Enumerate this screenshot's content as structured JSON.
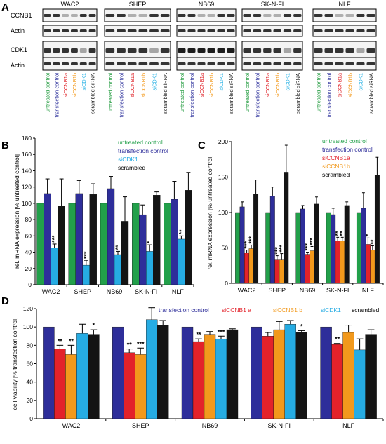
{
  "panels": {
    "A": "A",
    "B": "B",
    "C": "C",
    "D": "D"
  },
  "panel_a": {
    "cell_lines": [
      "WAC2",
      "SHEP",
      "NB69",
      "SK-N-FI",
      "NLF"
    ],
    "row_labels": [
      "CCNB1",
      "Actin",
      "CDK1",
      "Actin"
    ],
    "lane_labels": [
      {
        "text": "untreated control",
        "color": "#1f9a3c"
      },
      {
        "text": "transfection control",
        "color": "#2b2f9b"
      },
      {
        "text": "siCCNB1a",
        "color": "#e0262b"
      },
      {
        "text": "siCCNB1b",
        "color": "#f39a1e"
      },
      {
        "text": "siCDK1",
        "color": "#2bb3e6"
      },
      {
        "text": "scrambled siRNA",
        "color": "#222222"
      }
    ]
  },
  "chart_data": [
    {
      "type": "bar",
      "panel": "B",
      "categories": [
        "WAC2",
        "SHEP",
        "NB69",
        "SK-N-FI",
        "NLF"
      ],
      "ylabel": "rel. mRNA expression [% untreated control]",
      "ylim": [
        0,
        180
      ],
      "yticks": [
        0,
        20,
        40,
        60,
        80,
        100,
        120,
        140,
        160,
        180
      ],
      "legend": "top-right",
      "series": [
        {
          "name": "untreated control",
          "color": "#22a04a",
          "values": [
            100,
            100,
            100,
            100,
            100
          ],
          "errors": [
            0,
            0,
            0,
            0,
            0
          ],
          "sig": [
            "",
            "",
            "",
            "",
            ""
          ]
        },
        {
          "name": "transfection control",
          "color": "#2e2e9a",
          "values": [
            112,
            112,
            118,
            86,
            105
          ],
          "errors": [
            18,
            16,
            15,
            12,
            22
          ],
          "sig": [
            "",
            "",
            "",
            "",
            ""
          ]
        },
        {
          "name": "siCDK1",
          "color": "#26ace3",
          "values": [
            45,
            24,
            37,
            41,
            56
          ],
          "errors": [
            5,
            6,
            4,
            8,
            4
          ],
          "sig": [
            "***",
            "***",
            "**",
            "*",
            "**"
          ]
        },
        {
          "name": "scrambled",
          "color": "#141414",
          "values": [
            97,
            111,
            78,
            110,
            116
          ],
          "errors": [
            33,
            13,
            30,
            4,
            22
          ],
          "sig": [
            "",
            "",
            "",
            "",
            ""
          ]
        }
      ]
    },
    {
      "type": "bar",
      "panel": "C",
      "categories": [
        "WAC2",
        "SHEP",
        "NB69",
        "SK-N-FI",
        "NLF"
      ],
      "ylabel": "rel. mRNA expression [% untreated control]",
      "ylim": [
        0,
        200
      ],
      "yticks": [
        0,
        50,
        100,
        150,
        200
      ],
      "legend": "top-right",
      "series": [
        {
          "name": "untreated control",
          "color": "#22a04a",
          "values": [
            100,
            100,
            100,
            100,
            100
          ],
          "errors": [
            0,
            0,
            0,
            0,
            0
          ],
          "sig": [
            "",
            "",
            "",
            "",
            ""
          ]
        },
        {
          "name": "transfection control",
          "color": "#2e2e9a",
          "values": [
            108,
            123,
            105,
            97,
            106
          ],
          "errors": [
            7,
            13,
            5,
            9,
            22
          ],
          "sig": [
            "",
            "",
            "",
            "",
            ""
          ]
        },
        {
          "name": "siCCNB1a",
          "color": "#e3222a",
          "values": [
            43,
            34,
            41,
            60,
            55
          ],
          "errors": [
            4,
            5,
            3,
            5,
            9
          ],
          "sig": [
            "***",
            "***",
            "***",
            "**",
            "*"
          ]
        },
        {
          "name": "siCCNB1b",
          "color": "#f2991c",
          "values": [
            49,
            34,
            46,
            60,
            47
          ],
          "errors": [
            5,
            8,
            6,
            5,
            6
          ],
          "sig": [
            "***",
            "***",
            "***",
            "**",
            "**"
          ]
        },
        {
          "name": "scrambled",
          "color": "#141414",
          "values": [
            126,
            157,
            112,
            110,
            153
          ],
          "errors": [
            20,
            38,
            10,
            5,
            25
          ],
          "sig": [
            "",
            "",
            "",
            "",
            ""
          ]
        }
      ]
    },
    {
      "type": "bar",
      "panel": "D",
      "categories": [
        "WAC2",
        "SHEP",
        "NB69",
        "SK-N-FI",
        "NLF"
      ],
      "ylabel": "cell viability [% transfection control]",
      "ylim": [
        0,
        120
      ],
      "yticks": [
        0,
        20,
        40,
        60,
        80,
        100,
        120
      ],
      "legend": "top",
      "series": [
        {
          "name": "transfection control",
          "color": "#2e2e9a",
          "values": [
            100,
            100,
            100,
            100,
            100
          ],
          "errors": [
            0,
            0,
            0,
            0,
            0
          ],
          "sig": [
            "",
            "",
            "",
            "",
            ""
          ]
        },
        {
          "name": "siCCNB1 a",
          "color": "#e3222a",
          "values": [
            76,
            72,
            84,
            90,
            81
          ],
          "errors": [
            4,
            4,
            3,
            4,
            1
          ],
          "sig": [
            "**",
            "**",
            "**",
            "",
            "**"
          ]
        },
        {
          "name": "siCCNB1 b",
          "color": "#f2991c",
          "values": [
            70,
            70,
            92,
            97,
            94
          ],
          "errors": [
            10,
            7,
            3,
            9,
            8
          ],
          "sig": [
            "**",
            "***",
            "",
            "",
            ""
          ]
        },
        {
          "name": "siCDK1",
          "color": "#26ace3",
          "values": [
            93,
            108,
            87,
            103,
            75
          ],
          "errors": [
            10,
            13,
            3,
            4,
            12
          ],
          "sig": [
            "",
            "",
            "***",
            "",
            ""
          ]
        },
        {
          "name": "scrambled",
          "color": "#141414",
          "values": [
            92,
            102,
            97,
            94,
            92
          ],
          "errors": [
            5,
            5,
            1,
            2,
            5
          ],
          "sig": [
            "*",
            "",
            "",
            "*",
            ""
          ]
        }
      ]
    }
  ]
}
